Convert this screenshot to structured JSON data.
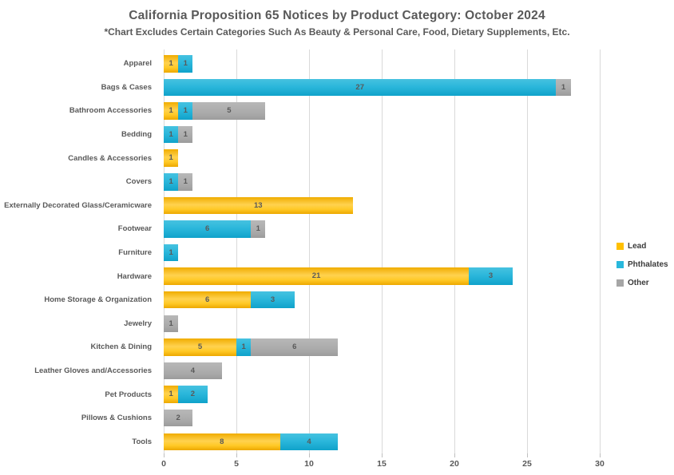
{
  "title": "California Proposition 65 Notices by Product Category: October 2024",
  "subtitle": "*Chart Excludes Certain Categories Such As Beauty & Personal Care, Food, Dietary Supplements, Etc.",
  "colors": {
    "lead": "#FFC000",
    "phthalates": "#29B8DC",
    "other": "#A6A6A6",
    "gridline": "#D9D9D9",
    "text": "#595959",
    "legend_text": "#3B3B3B",
    "background": "#FFFFFF"
  },
  "chart_data": {
    "type": "bar",
    "orientation": "horizontal",
    "stacked": true,
    "title": "California Proposition 65 Notices by Product Category: October 2024",
    "subtitle": "*Chart Excludes Certain Categories Such As Beauty & Personal Care, Food, Dietary Supplements, Etc.",
    "xlabel": "",
    "ylabel": "",
    "xlim": [
      0,
      30
    ],
    "xticks": [
      0,
      5,
      10,
      15,
      20,
      25,
      30
    ],
    "grid": true,
    "legend_position": "right",
    "value_labels_shown": true,
    "categories": [
      "Apparel",
      "Bags & Cases",
      "Bathroom Accessories",
      "Bedding",
      "Candles & Accessories",
      "Covers",
      "Externally Decorated Glass/Ceramicware",
      "Footwear",
      "Furniture",
      "Hardware",
      "Home Storage & Organization",
      "Jewelry",
      "Kitchen & Dining",
      "Leather Gloves and/Accessories",
      "Pet Products",
      "Pillows & Cushions",
      "Tools"
    ],
    "series": [
      {
        "name": "Lead",
        "color_key": "lead",
        "values": [
          1,
          0,
          1,
          0,
          1,
          0,
          13,
          0,
          0,
          21,
          6,
          0,
          5,
          0,
          1,
          0,
          8
        ]
      },
      {
        "name": "Phthalates",
        "color_key": "phthalates",
        "values": [
          1,
          27,
          1,
          1,
          0,
          1,
          0,
          6,
          1,
          3,
          3,
          0,
          1,
          0,
          2,
          0,
          4
        ]
      },
      {
        "name": "Other",
        "color_key": "other",
        "values": [
          0,
          1,
          5,
          1,
          0,
          1,
          0,
          1,
          0,
          0,
          0,
          1,
          6,
          4,
          0,
          2,
          0
        ]
      }
    ]
  }
}
